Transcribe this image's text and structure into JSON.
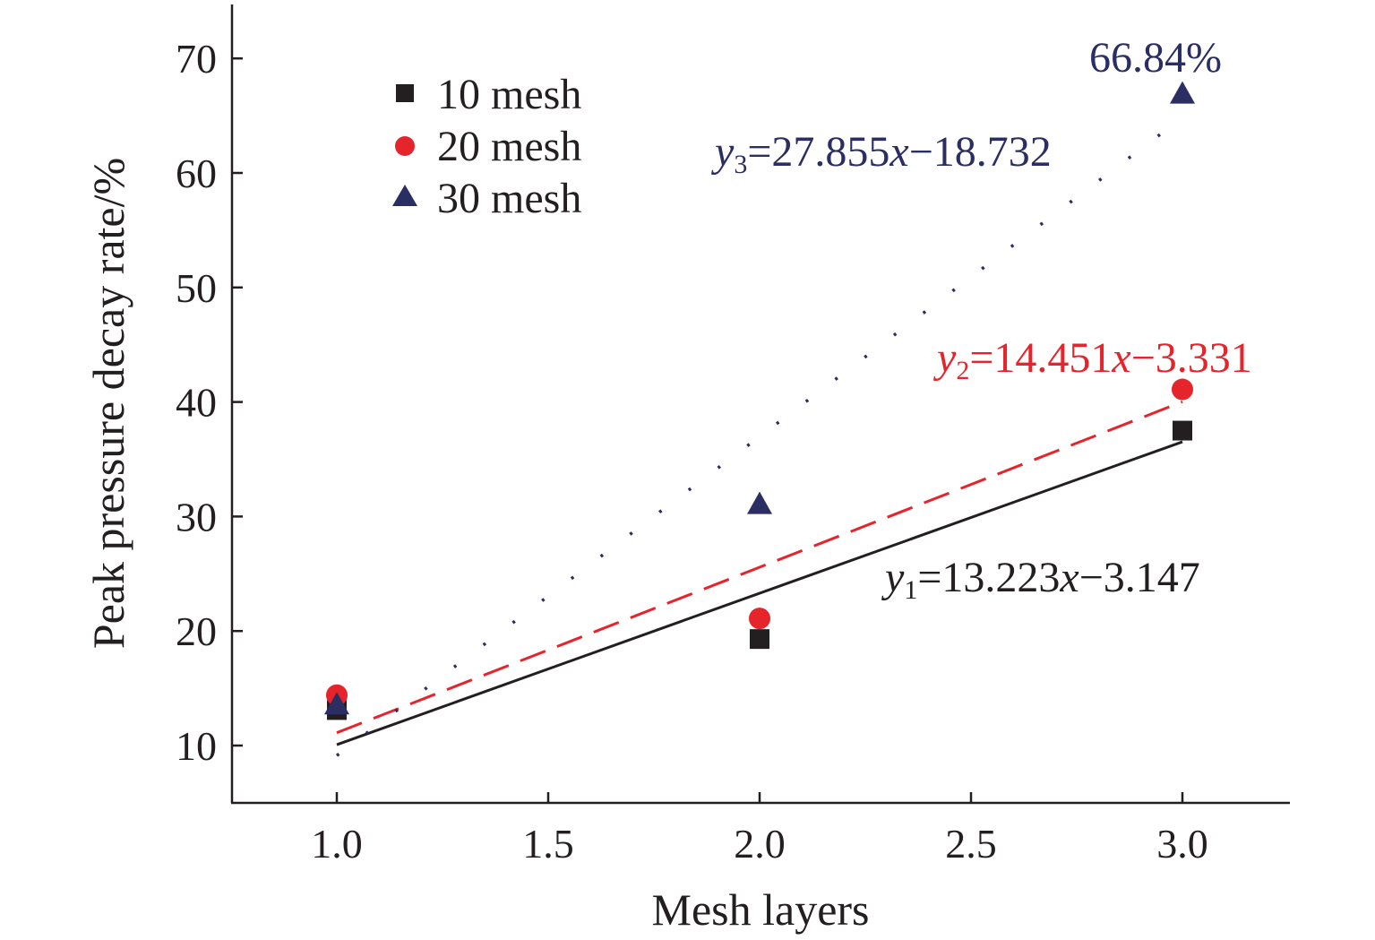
{
  "chart_data": {
    "type": "scatter",
    "title": "",
    "xlabel": "Mesh layers",
    "ylabel": "Peak pressure decay rate/%",
    "xlim": [
      0.75,
      3.25
    ],
    "ylim": [
      5,
      75
    ],
    "xticks": [
      "1.0",
      "1.5",
      "2.0",
      "2.5",
      "3.0"
    ],
    "xtick_values": [
      1.0,
      1.5,
      2.0,
      2.5,
      3.0
    ],
    "yticks": [
      "10",
      "20",
      "30",
      "40",
      "50",
      "60",
      "70"
    ],
    "ytick_values": [
      10,
      20,
      30,
      40,
      50,
      60,
      70
    ],
    "legend_position": "top-left",
    "series": [
      {
        "name": "10 mesh",
        "marker": "square",
        "color": "#231f20",
        "x": [
          1.0,
          2.0,
          3.0
        ],
        "y": [
          13.1,
          19.3,
          37.5
        ],
        "fit": {
          "slope": 13.223,
          "intercept": -3.147,
          "style": "solid",
          "x_range": [
            1.0,
            3.0
          ]
        },
        "equation": {
          "var": "y",
          "sub": "1",
          "rest_a": "=13.223",
          "x": "x",
          "rest_b": "−3.147"
        }
      },
      {
        "name": "20 mesh",
        "marker": "circle",
        "color": "#e5242b",
        "x": [
          1.0,
          2.0,
          3.0
        ],
        "y": [
          14.4,
          21.1,
          41.1
        ],
        "fit": {
          "slope": 14.451,
          "intercept": -3.331,
          "style": "dashed",
          "x_range": [
            1.0,
            3.0
          ]
        },
        "equation": {
          "var": "y",
          "sub": "2",
          "rest_a": "=14.451",
          "x": "x",
          "rest_b": "−3.331"
        }
      },
      {
        "name": "30 mesh",
        "marker": "triangle",
        "color": "#2b2e63",
        "x": [
          1.0,
          2.0,
          3.0
        ],
        "y": [
          13.5,
          31.0,
          66.84
        ],
        "fit": {
          "slope": 27.855,
          "intercept": -18.732,
          "style": "dotted",
          "x_range": [
            1.0,
            3.0
          ]
        },
        "equation": {
          "var": "y",
          "sub": "3",
          "rest_a": "=27.855",
          "x": "x",
          "rest_b": "−18.732"
        }
      }
    ],
    "annotations": [
      {
        "text": "66.84%",
        "color": "#2b2e63"
      }
    ]
  }
}
